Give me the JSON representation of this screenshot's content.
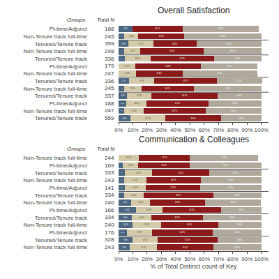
{
  "chart_data": [
    {
      "type": "bar",
      "title": "Overall Satisfaction",
      "orientation": "horizontal",
      "stacked": true,
      "data_labels": true,
      "grid": false,
      "categories": [
        "Pt-time/Adjunct",
        "Non-Tenure track full-time",
        "Tenured/Tenure track",
        "Non-Tenure track full-time",
        "Tenured/Tenure track",
        "Pt-time/Adjunct",
        "Non-Tenure track full-time",
        "Tenured/Tenure track",
        "Non-Tenure track full-time",
        "Tenured/Tenure track",
        "Pt-time/Adjunct",
        "Non-Tenure track full-time",
        "Tenured/Tenure track"
      ],
      "series": [
        {
          "color": "#4a6680",
          "values": [
            9.6,
            4.1,
            6.8,
            4.0,
            4.2,
            0,
            0,
            7.1,
            4.1,
            5.9,
            5.3,
            4.0,
            8.3
          ],
          "value_labels": [
            "9.6%",
            "4.1%",
            "6.8%",
            "4.0%",
            "4.2%",
            null,
            null,
            "7.1%",
            "4.1%",
            "5.9%",
            "5.3%",
            "4.0%",
            "8.3%"
          ]
        },
        {
          "color": "#d4c9a8",
          "values": [
            0,
            9.8,
            17.4,
            11.3,
            18.2,
            11.7,
            12.0,
            17.9,
            11.8,
            17.2,
            14.4,
            13.4,
            24.2
          ],
          "value_labels": [
            null,
            "9.8%",
            "17.4%",
            "11.3%",
            "18.2%",
            "11.7%",
            "12.0%",
            "17.9%",
            "11.8%",
            "17.2%",
            "14.4%",
            "13.4%",
            "24.2%"
          ]
        },
        {
          "color": "#8b1a1a",
          "values": [
            35.1,
            32.2,
            30.4,
            44.4,
            44.3,
            45.8,
            32.8,
            43.7,
            36.7,
            46.3,
            43.1,
            43.7,
            39.5
          ],
          "value_labels": [
            "35.1%",
            "32.2%",
            "30.4%",
            "44.4%",
            "44.3%",
            "45.8%",
            "32.8%",
            "43.7%",
            "36.7%",
            "46.3%",
            "43.1%",
            "43.7%",
            "39.5%"
          ]
        },
        {
          "color": "#b0a89a",
          "values": [
            53.7,
            53.9,
            45.4,
            40.3,
            33.3,
            39.7,
            52.2,
            31.8,
            47.3,
            30.6,
            37.2,
            38.9,
            28.0
          ],
          "value_labels": [
            "53.7%",
            "53.9%",
            "45.4%",
            "40.3%",
            "33.3%",
            "39.7%",
            "52.2%",
            "31.8%",
            "47.3%",
            "30.6%",
            "37.2%",
            "38.9%",
            "28.0%"
          ]
        }
      ],
      "totals": [
        188,
        245,
        359,
        248,
        336,
        179,
        247,
        336,
        245,
        337,
        188,
        247,
        559
      ],
      "annotations": [
        "Groups",
        "Total N"
      ],
      "separators": [
        2,
        4,
        7,
        9
      ],
      "xlim": [
        0,
        105
      ],
      "xticks": [
        {
          "value": 0,
          "label": "0%"
        },
        {
          "value": 10,
          "label": "10%"
        },
        {
          "value": 20,
          "label": "20%"
        },
        {
          "value": 30,
          "label": "30%"
        },
        {
          "value": 40,
          "label": "40%"
        },
        {
          "value": 50,
          "label": "50%"
        },
        {
          "value": 60,
          "label": "60%"
        },
        {
          "value": 70,
          "label": "70%"
        },
        {
          "value": 80,
          "label": "80%"
        },
        {
          "value": 90,
          "label": "90%"
        },
        {
          "value": 100,
          "label": "100%"
        }
      ]
    },
    {
      "type": "bar",
      "title": "Communication & Colleagues",
      "xlabel": "% of Total Distinct count of Key",
      "orientation": "horizontal",
      "stacked": true,
      "data_labels": true,
      "grid": false,
      "categories": [
        "Non-Tenure track full-time",
        "Pt-time/Adjunct",
        "Tenured/Tenure track",
        "Non-Tenure track full-time",
        "Pt-time/Adjunct",
        "Tenured/Tenure track",
        "Non-Tenure track full-time",
        "Pt-time/Adjunct",
        "Tenured/Tenure track",
        "Non-Tenure track full-time",
        "Pt-time/Adjunct",
        "Tenured/Tenure track",
        "Non-Tenure track full-time"
      ],
      "series": [
        {
          "color": "#4a6680",
          "values": [
            0,
            3.1,
            4.2,
            4.1,
            4.3,
            4.0,
            9.0,
            12.0,
            9.3,
            10.0,
            5.7,
            9.8,
            7.8
          ],
          "value_labels": [
            null,
            "3.1%",
            "4.2%",
            "4.1%",
            "4.3%",
            "4.0%",
            "9.0%",
            "12.0%",
            "9.3%",
            "10.0%",
            "5.7%",
            "9.8%",
            "7.8%"
          ]
        },
        {
          "color": "#d4c9a8",
          "values": [
            14.3,
            10.6,
            19.2,
            15.2,
            14.9,
            13.5,
            12.9,
            18.7,
            13.8,
            19.6,
            17.6,
            17.4,
            19.3
          ],
          "value_labels": [
            "14.3%",
            "10.6%",
            "19.2%",
            "15.2%",
            "14.9%",
            "13.5%",
            "12.9%",
            "18.7%",
            "13.8%",
            "19.6%",
            "17.6%",
            "17.4%",
            "19.3%"
          ]
        },
        {
          "color": "#8b1a1a",
          "values": [
            35.7,
            36.3,
            40.2,
            38.3,
            37.9,
            48.7,
            38.8,
            41.0,
            35.9,
            40.0,
            42.6,
            42.1,
            39.1
          ],
          "value_labels": [
            "35.7%",
            "36.3%",
            "40.2%",
            "38.3%",
            "37.9%",
            "48.7%",
            "38.8%",
            "41.0%",
            "35.9%",
            "40.0%",
            "42.6%",
            "42.1%",
            "39.1%"
          ]
        },
        {
          "color": "#b0a89a",
          "values": [
            47.5,
            50.0,
            36.3,
            42.4,
            42.9,
            33.8,
            38.8,
            28.3,
            41.0,
            30.4,
            34.1,
            30.8,
            33.7
          ],
          "value_labels": [
            "47.5%",
            "50.0%",
            "36.3%",
            "42.4%",
            "42.9%",
            "33.8%",
            "38.8%",
            "28.3%",
            "41.0%",
            "30.4%",
            "34.1%",
            "30.8%",
            "33.7%"
          ]
        }
      ],
      "totals": [
        244,
        169,
        333,
        243,
        141,
        334,
        240,
        166,
        334,
        240,
        176,
        328,
        243
      ],
      "annotations": [
        "Groups",
        "Total N"
      ],
      "separators": [
        2,
        5,
        8,
        11
      ],
      "xlim": [
        0,
        105
      ],
      "xticks": [
        {
          "value": 0,
          "label": "0%"
        },
        {
          "value": 10,
          "label": "10%"
        },
        {
          "value": 20,
          "label": "20%"
        },
        {
          "value": 30,
          "label": "30%"
        },
        {
          "value": 40,
          "label": "40%"
        },
        {
          "value": 50,
          "label": "50%"
        },
        {
          "value": 60,
          "label": "60%"
        },
        {
          "value": 70,
          "label": "70%"
        },
        {
          "value": 80,
          "label": "80%"
        },
        {
          "value": 90,
          "label": "90%"
        },
        {
          "value": 100,
          "label": "100%"
        }
      ]
    }
  ]
}
